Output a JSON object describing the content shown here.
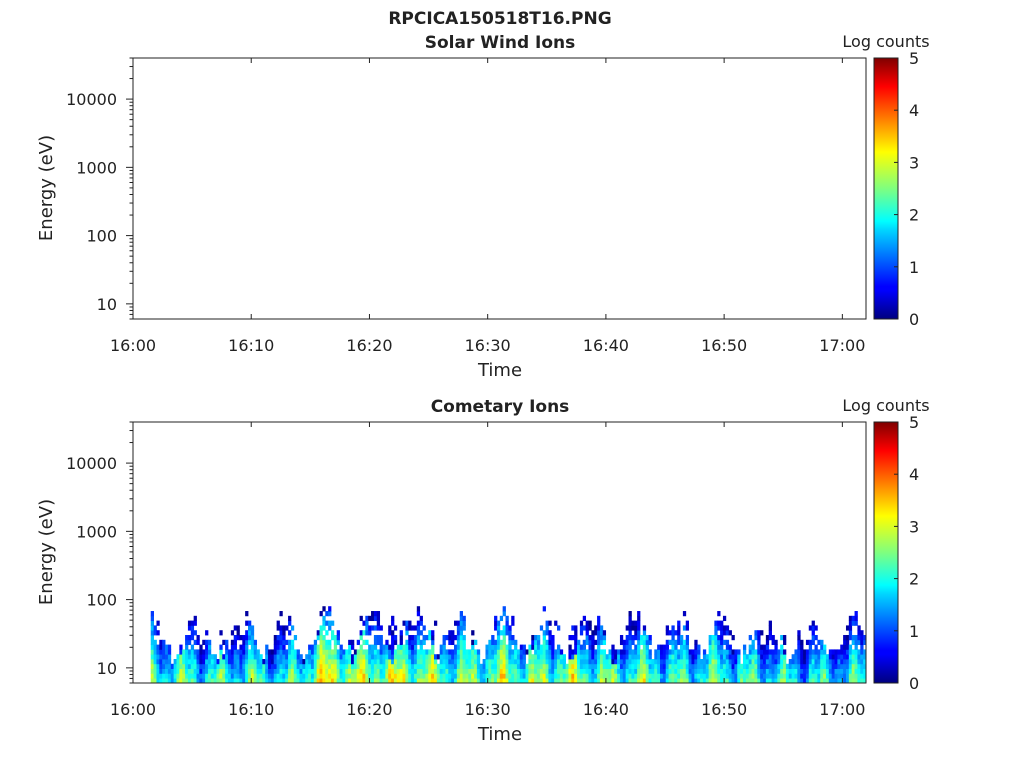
{
  "figure": {
    "title": "RPCICA150518T16.PNG"
  },
  "chart_data": [
    {
      "type": "heatmap",
      "title": "Solar Wind Ions",
      "xlabel": "Time",
      "ylabel": "Energy (eV)",
      "xticks": [
        "16:00",
        "16:10",
        "16:20",
        "16:30",
        "16:40",
        "16:50",
        "17:00"
      ],
      "xlim": [
        "16:00",
        "17:02"
      ],
      "yscale": "log",
      "ylim": [
        6,
        40000
      ],
      "yticks": [
        10,
        100,
        1000,
        10000
      ],
      "yticklabels": [
        "10",
        "100",
        "1000",
        "10000"
      ],
      "colorbar": {
        "label": "Log counts",
        "range": [
          0,
          5
        ],
        "ticks": [
          "0",
          "1",
          "2",
          "3",
          "4",
          "5"
        ],
        "colormap": "jet"
      },
      "data": "empty"
    },
    {
      "type": "heatmap",
      "title": "Cometary Ions",
      "xlabel": "Time",
      "ylabel": "Energy (eV)",
      "xticks": [
        "16:00",
        "16:10",
        "16:20",
        "16:30",
        "16:40",
        "16:50",
        "17:00"
      ],
      "xlim": [
        "16:00",
        "17:02"
      ],
      "yscale": "log",
      "ylim": [
        6,
        40000
      ],
      "yticks": [
        10,
        100,
        1000,
        10000
      ],
      "yticklabels": [
        "10",
        "100",
        "1000",
        "10000"
      ],
      "colorbar": {
        "label": "Log counts",
        "range": [
          0,
          5
        ],
        "ticks": [
          "0",
          "1",
          "2",
          "3",
          "4",
          "5"
        ],
        "colormap": "jet"
      },
      "data_time_range": [
        "16:01.5",
        "17:02"
      ],
      "energy_range_eV": [
        6,
        80
      ],
      "intensity_profile": [
        {
          "time": "16:02",
          "log_counts": 2.2
        },
        {
          "time": "16:06",
          "log_counts": 2.0
        },
        {
          "time": "16:10",
          "log_counts": 2.1
        },
        {
          "time": "16:13",
          "log_counts": 1.8
        },
        {
          "time": "16:16",
          "log_counts": 3.0
        },
        {
          "time": "16:19",
          "log_counts": 2.6
        },
        {
          "time": "16:22",
          "log_counts": 2.8
        },
        {
          "time": "16:25",
          "log_counts": 2.5
        },
        {
          "time": "16:28",
          "log_counts": 2.3
        },
        {
          "time": "16:31",
          "log_counts": 2.6
        },
        {
          "time": "16:34",
          "log_counts": 2.4
        },
        {
          "time": "16:37",
          "log_counts": 2.6
        },
        {
          "time": "16:40",
          "log_counts": 2.2
        },
        {
          "time": "16:43",
          "log_counts": 2.3
        },
        {
          "time": "16:46",
          "log_counts": 2.0
        },
        {
          "time": "16:49",
          "log_counts": 2.2
        },
        {
          "time": "16:52",
          "log_counts": 2.0
        },
        {
          "time": "16:55",
          "log_counts": 1.9
        },
        {
          "time": "16:58",
          "log_counts": 1.8
        },
        {
          "time": "17:01",
          "log_counts": 1.9
        }
      ]
    }
  ]
}
